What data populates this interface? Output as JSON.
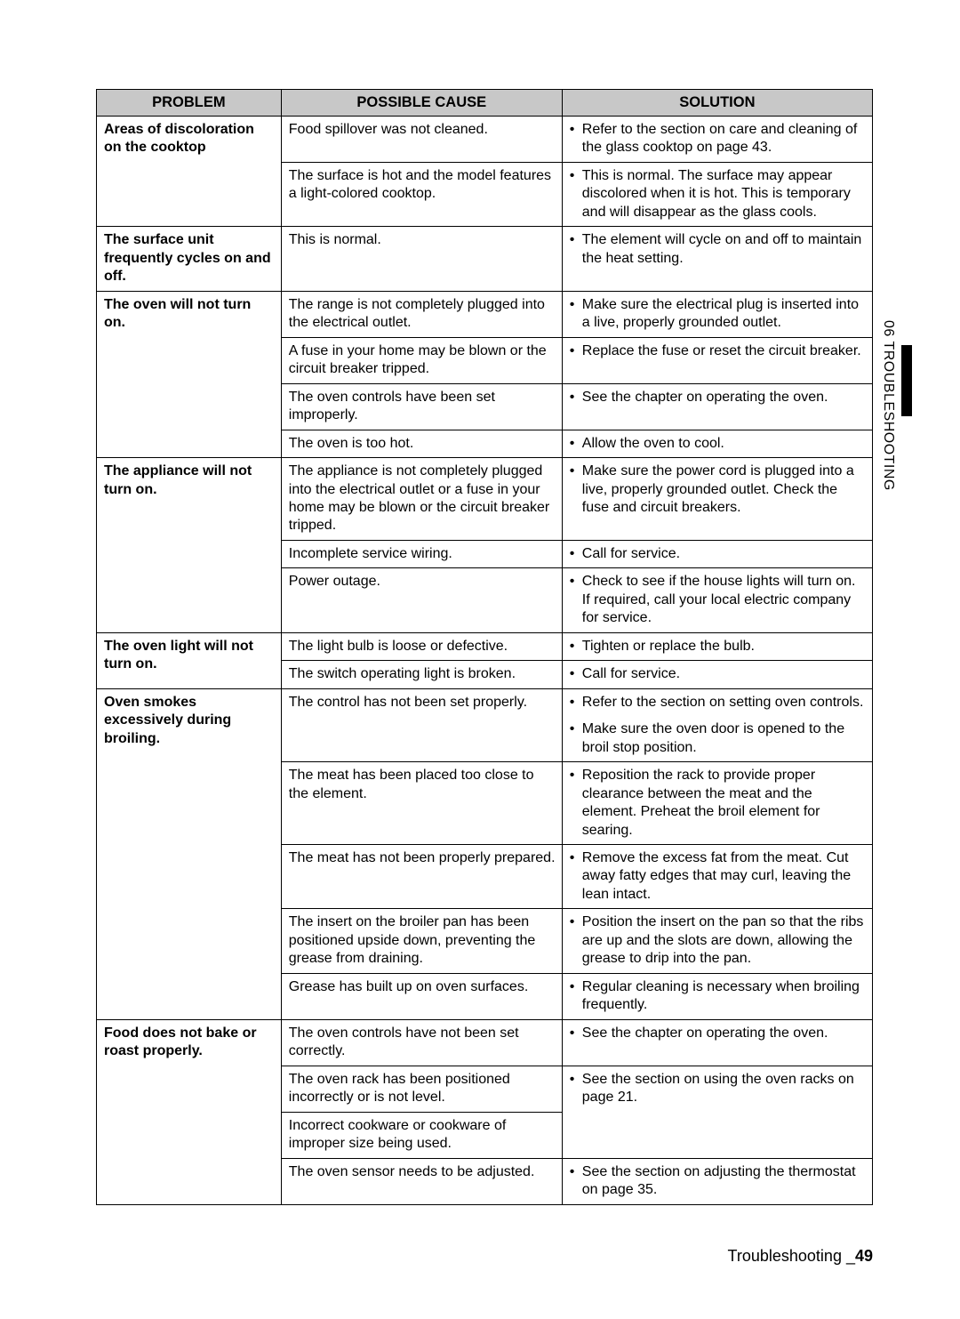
{
  "side_tab": "06  TROUBLESHOOTING",
  "footer_label": "Troubleshooting _",
  "footer_page": "49",
  "table": {
    "col_widths": [
      "23.8%",
      "36.2%",
      "40%"
    ],
    "header_bg": "#c8c8c8",
    "border_color": "#000000",
    "font_size_body": 16,
    "font_size_header": 16.5,
    "headers": [
      "PROBLEM",
      "POSSIBLE CAUSE",
      "SOLUTION"
    ],
    "groups": [
      {
        "problem": "Areas of discoloration on the cooktop",
        "rows": [
          {
            "cause": "Food spillover was not cleaned.",
            "solution": [
              "Refer to the section on care and cleaning of the glass cooktop on page 43."
            ]
          },
          {
            "cause": "The surface is hot and the model features a light-colored cooktop.",
            "solution": [
              "This is normal. The surface may appear discolored when it is hot. This is temporary and will disappear as the glass cools."
            ]
          }
        ]
      },
      {
        "problem": "The surface unit frequently cycles on and off.",
        "rows": [
          {
            "cause": "This is normal.",
            "solution": [
              "The element will cycle on and off to maintain the heat setting."
            ]
          }
        ]
      },
      {
        "problem": "The oven will not turn on.",
        "rows": [
          {
            "cause": "The range is not completely plugged into the electrical outlet.",
            "solution": [
              "Make sure the electrical plug is inserted into a live, properly grounded outlet."
            ]
          },
          {
            "cause": "A fuse in your home may be blown or the circuit breaker tripped.",
            "solution": [
              "Replace the fuse or reset the circuit breaker."
            ]
          },
          {
            "cause": "The oven controls have been set improperly.",
            "solution": [
              "See the chapter on operating the oven."
            ]
          },
          {
            "cause": "The oven is too hot.",
            "solution": [
              "Allow the oven to cool."
            ]
          }
        ]
      },
      {
        "problem": "The appliance will not turn on.",
        "rows": [
          {
            "cause": "The appliance is not completely plugged into the electrical outlet or a fuse in your home may be blown or the circuit breaker tripped.",
            "solution": [
              "Make sure the power cord is plugged into a live, properly grounded outlet. Check the fuse and circuit breakers."
            ]
          },
          {
            "cause": "Incomplete service wiring.",
            "solution": [
              "Call for service."
            ]
          },
          {
            "cause": "Power outage.",
            "solution": [
              "Check to see if the house lights will turn on. If required, call your local electric company for service."
            ]
          }
        ]
      },
      {
        "problem": "The oven light will not turn on.",
        "rows": [
          {
            "cause": "The light bulb is loose or defective.",
            "solution": [
              "Tighten or replace the bulb."
            ]
          },
          {
            "cause": "The switch operating light is broken.",
            "solution": [
              "Call for service."
            ]
          }
        ]
      },
      {
        "problem": "Oven smokes excessively during broiling.",
        "rows": [
          {
            "cause": "The control has not been set properly.",
            "solution": [
              "Refer to the section on setting oven controls.",
              "Make sure the oven door is opened to the broil stop position."
            ]
          },
          {
            "cause": "The meat has been placed too close to the element.",
            "solution": [
              "Reposition the rack to provide proper clearance between the meat and the element. Preheat the broil element for searing."
            ]
          },
          {
            "cause": "The meat has not been properly prepared.",
            "solution": [
              "Remove the excess fat from the meat. Cut away fatty edges that may curl, leaving the lean intact."
            ]
          },
          {
            "cause": "The insert on the broiler pan has been positioned upside down, preventing the grease from draining.",
            "solution": [
              "Position the insert on the pan so that the ribs are up and the slots are down, allowing the grease to drip into the pan."
            ]
          },
          {
            "cause": "Grease has built up on oven surfaces.",
            "solution": [
              "Regular cleaning is necessary when broiling frequently."
            ]
          }
        ]
      },
      {
        "problem": "Food does not bake or roast properly.",
        "rows": [
          {
            "cause": "The oven controls have not been set correctly.",
            "solution": [
              "See the chapter on operating the oven."
            ]
          },
          {
            "cause": "The oven rack has been positioned incorrectly or is not level.",
            "solution": [
              "See the section on using the oven racks on page 21."
            ],
            "sol_rowspan": 2
          },
          {
            "cause": "Incorrect cookware or cookware of improper size being used.",
            "solution": null
          },
          {
            "cause": "The oven sensor needs to be adjusted.",
            "solution": [
              "See the section on adjusting the thermostat on page 35."
            ]
          }
        ]
      }
    ]
  }
}
